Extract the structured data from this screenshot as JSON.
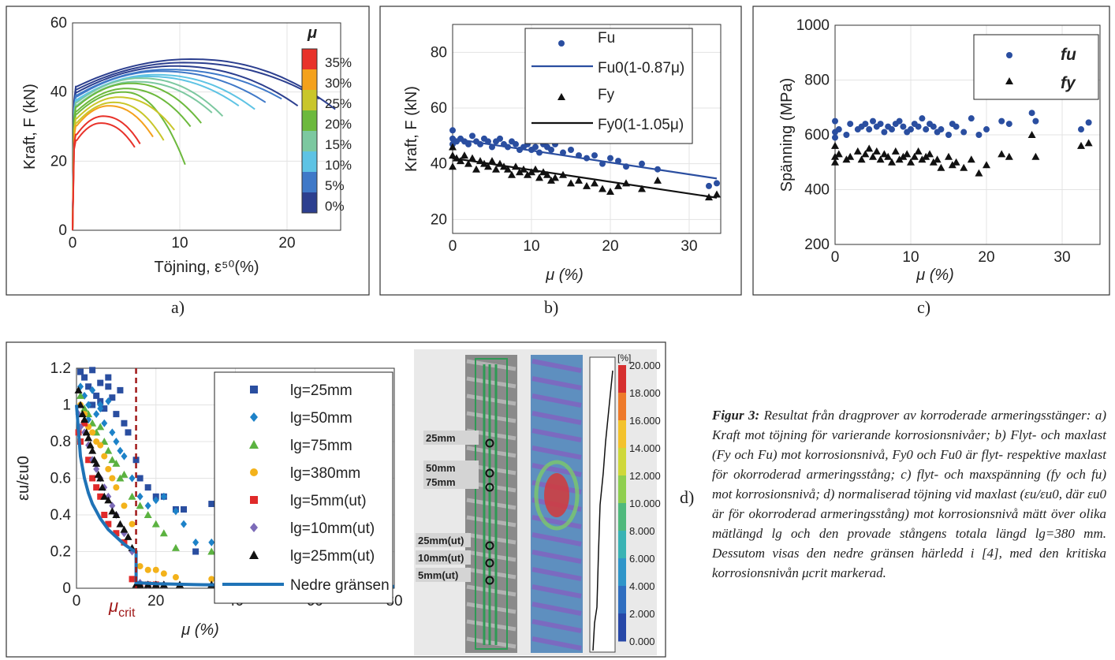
{
  "panel_labels": {
    "a": "a)",
    "b": "b)",
    "c": "c)",
    "d": "d)"
  },
  "caption": {
    "lead": "Figur 3:",
    "text": "Resultat från dragprover av korroderade armeringsstänger: a) Kraft mot töjning för varierande korrosionsnivåer; b) Flyt- och maxlast (Fy och Fu) mot korrosionsnivå, Fy0 och Fu0 är flyt- respektive maxlast för okorroderad armeringsstång; c) flyt- och maxspänning (fy och fu) mot korrosionsnivå; d) normaliserad töjning vid maxlast (εu/εu0, där εu0 är för okorroderad armeringsstång) mot korrosionsnivå mätt över olika mätlängd lg och den provade stångens totala längd lg=380 mm. Dessutom visas den nedre gränsen härledd i [4], med den kritiska korrosionsnivån μcrit markerad."
  },
  "colors": {
    "blue": "#2a4ea0",
    "black": "#111111",
    "crit": "#a01818",
    "lower": "#1f73b7"
  },
  "chart_data": [
    {
      "id": "a",
      "type": "line",
      "xlabel": "Töjning, ε⁵⁰(%)",
      "ylabel": "Kraft, F (kN)",
      "xlim": [
        0,
        25
      ],
      "ylim": [
        0,
        60
      ],
      "xticks": [
        "0",
        "10",
        "20"
      ],
      "xtick_values": [
        0,
        10,
        20
      ],
      "yticks": [
        "0",
        "20",
        "40",
        "60"
      ],
      "ytick_values": [
        0,
        20,
        40,
        60
      ],
      "colorbar": {
        "title": "μ",
        "labels": [
          "35%",
          "30%",
          "25%",
          "20%",
          "15%",
          "10%",
          "5%",
          "0%"
        ],
        "colors": [
          "#e8322a",
          "#f4a11c",
          "#c9c62a",
          "#6cb93d",
          "#7cc8a0",
          "#5ec3e4",
          "#3f79c8",
          "#2c3f8f"
        ]
      },
      "series": [
        {
          "color": "#2c3f8f",
          "peak": 49.5,
          "end_x": 24.5,
          "end_y": 35
        },
        {
          "color": "#2c3f8f",
          "peak": 48.5,
          "end_x": 23.0,
          "end_y": 38
        },
        {
          "color": "#2c3f8f",
          "peak": 47.5,
          "end_x": 21.0,
          "end_y": 36
        },
        {
          "color": "#3f79c8",
          "peak": 46.5,
          "end_x": 19.5,
          "end_y": 38
        },
        {
          "color": "#3f79c8",
          "peak": 46.0,
          "end_x": 18.0,
          "end_y": 37
        },
        {
          "color": "#5ec3e4",
          "peak": 45.0,
          "end_x": 17.0,
          "end_y": 35
        },
        {
          "color": "#5ec3e4",
          "peak": 44.5,
          "end_x": 15.5,
          "end_y": 36
        },
        {
          "color": "#7cc8a0",
          "peak": 44.0,
          "end_x": 14.0,
          "end_y": 33
        },
        {
          "color": "#7cc8a0",
          "peak": 43.0,
          "end_x": 13.0,
          "end_y": 34
        },
        {
          "color": "#6cb93d",
          "peak": 42.5,
          "end_x": 12.0,
          "end_y": 31
        },
        {
          "color": "#6cb93d",
          "peak": 41.0,
          "end_x": 11.0,
          "end_y": 30
        },
        {
          "color": "#6cb93d",
          "peak": 40.0,
          "end_x": 10.5,
          "end_y": 19
        },
        {
          "color": "#c9c62a",
          "peak": 38.5,
          "end_x": 9.5,
          "end_y": 29
        },
        {
          "color": "#c9c62a",
          "peak": 37.0,
          "end_x": 8.5,
          "end_y": 26
        },
        {
          "color": "#f4a11c",
          "peak": 36.0,
          "end_x": 7.5,
          "end_y": 27
        },
        {
          "color": "#e8322a",
          "peak": 33.0,
          "end_x": 6.3,
          "end_y": 25
        },
        {
          "color": "#e8322a",
          "peak": 31.0,
          "end_x": 5.8,
          "end_y": 24
        }
      ]
    },
    {
      "id": "b",
      "type": "scatter",
      "xlabel": "μ (%)",
      "ylabel": "Kraft, F (kN)",
      "xlim": [
        0,
        34
      ],
      "ylim": [
        15,
        90
      ],
      "xticks": [
        "0",
        "10",
        "20",
        "30"
      ],
      "xtick_values": [
        0,
        10,
        20,
        30
      ],
      "yticks": [
        "20",
        "40",
        "60",
        "80"
      ],
      "ytick_values": [
        20,
        40,
        60,
        80
      ],
      "legend": [
        "Fu",
        "Fu0(1-0.87μ)",
        "Fy",
        "Fy0(1-1.05μ)"
      ],
      "series": [
        {
          "name": "Fu",
          "marker": "circle",
          "color": "#2a4ea0",
          "x": [
            0,
            0,
            0,
            0.5,
            1,
            1.5,
            2,
            2.5,
            3,
            3.5,
            4,
            4.5,
            5,
            5.5,
            6,
            6.5,
            7,
            7.5,
            8,
            8.5,
            9,
            9.5,
            10,
            10.5,
            11,
            11.5,
            12,
            12.5,
            13,
            14,
            15,
            16,
            17,
            18,
            19,
            20,
            21,
            22,
            24,
            26,
            32.5,
            33.5
          ],
          "y": [
            52,
            49,
            47,
            48,
            49,
            48,
            47,
            50,
            48,
            47,
            49,
            48,
            46,
            48,
            49,
            47,
            46,
            48,
            47,
            45,
            46,
            47,
            45,
            46,
            44,
            47,
            46,
            45,
            47,
            44,
            45,
            43,
            42,
            43,
            40,
            42,
            41,
            39,
            40,
            38,
            32,
            33
          ]
        },
        {
          "name": "Fu0(1-0.87μ)",
          "type": "line",
          "color": "#2a4ea0",
          "x": [
            0,
            33.5
          ],
          "y": [
            49,
            34.7
          ]
        },
        {
          "name": "Fy",
          "marker": "triangle",
          "color": "#111111",
          "x": [
            0,
            0,
            0,
            0.5,
            1,
            1.5,
            2,
            2.5,
            3,
            3.5,
            4,
            4.5,
            5,
            5.5,
            6,
            6.5,
            7,
            7.5,
            8,
            8.5,
            9,
            9.5,
            10,
            10.5,
            11,
            11.5,
            12,
            12.5,
            13,
            14,
            15,
            16,
            17,
            18,
            19,
            20,
            21,
            22,
            24,
            26,
            32.5,
            33.5
          ],
          "y": [
            46,
            43,
            39,
            42,
            41,
            43,
            40,
            42,
            38,
            41,
            40,
            39,
            41,
            38,
            40,
            39,
            38,
            36,
            39,
            37,
            38,
            36,
            37,
            38,
            35,
            37,
            36,
            34,
            35,
            36,
            33,
            34,
            32,
            33,
            31,
            30,
            32,
            33,
            31,
            34,
            28,
            29
          ]
        },
        {
          "name": "Fy0(1-1.05μ)",
          "type": "line",
          "color": "#111111",
          "x": [
            0,
            33.5
          ],
          "y": [
            42,
            27.8
          ]
        }
      ]
    },
    {
      "id": "c",
      "type": "scatter",
      "xlabel": "μ (%)",
      "ylabel": "Spänning (MPa)",
      "xlim": [
        0,
        35
      ],
      "ylim": [
        200,
        1000
      ],
      "xticks": [
        "0",
        "10",
        "20",
        "30"
      ],
      "xtick_values": [
        0,
        10,
        20,
        30
      ],
      "yticks": [
        "200",
        "400",
        "600",
        "800",
        "1000"
      ],
      "ytick_values": [
        200,
        400,
        600,
        800,
        1000
      ],
      "legend": [
        "fu",
        "fy"
      ],
      "series": [
        {
          "name": "fu",
          "marker": "circle",
          "color": "#2a4ea0",
          "x": [
            0,
            0,
            0,
            0.5,
            1.5,
            2,
            3,
            3.5,
            4,
            4.5,
            5,
            5.5,
            6,
            6.5,
            7,
            7.5,
            8,
            8.5,
            9,
            9.5,
            10,
            10.5,
            11,
            11.5,
            12,
            12.5,
            13,
            13.5,
            14,
            15,
            15.5,
            16,
            17,
            18,
            19,
            20,
            22,
            23,
            26,
            26.5,
            32.5,
            33.5
          ],
          "y": [
            650,
            610,
            590,
            620,
            600,
            640,
            620,
            630,
            640,
            620,
            650,
            630,
            640,
            610,
            630,
            620,
            640,
            650,
            630,
            610,
            620,
            640,
            630,
            660,
            620,
            640,
            630,
            610,
            620,
            600,
            640,
            630,
            610,
            660,
            600,
            620,
            650,
            640,
            680,
            650,
            620,
            645
          ]
        },
        {
          "name": "fy",
          "marker": "triangle",
          "color": "#111111",
          "x": [
            0,
            0,
            0,
            0.5,
            1.5,
            2,
            3,
            3.5,
            4,
            4.5,
            5,
            5.5,
            6,
            6.5,
            7,
            7.5,
            8,
            8.5,
            9,
            9.5,
            10,
            10.5,
            11,
            11.5,
            12,
            12.5,
            13,
            13.5,
            14,
            15,
            15.5,
            16,
            17,
            18,
            19,
            20,
            22,
            23,
            26,
            26.5,
            32.5,
            33.5
          ],
          "y": [
            560,
            520,
            500,
            530,
            510,
            520,
            540,
            510,
            530,
            550,
            520,
            540,
            510,
            530,
            520,
            500,
            540,
            510,
            520,
            530,
            500,
            520,
            540,
            510,
            520,
            530,
            500,
            510,
            480,
            520,
            490,
            500,
            480,
            510,
            460,
            490,
            530,
            520,
            600,
            520,
            560,
            570
          ]
        }
      ]
    },
    {
      "id": "d",
      "type": "scatter",
      "xlabel": "μ (%)",
      "ylabel": "εu/εu0",
      "xlim": [
        0,
        80
      ],
      "ylim": [
        0,
        1.2
      ],
      "xticks": [
        "0",
        "20",
        "40",
        "60",
        "80"
      ],
      "xtick_values": [
        0,
        20,
        40,
        60,
        80
      ],
      "yticks": [
        "0",
        "0.2",
        "0.4",
        "0.6",
        "0.8",
        "1",
        "1.2"
      ],
      "ytick_values": [
        0,
        0.2,
        0.4,
        0.6,
        0.8,
        1,
        1.2
      ],
      "crit_label": "crit",
      "crit_x": 15,
      "legend": [
        "lg=25mm",
        "lg=50mm",
        "lg=75mm",
        "lg=380mm",
        "lg=5mm(ut)",
        "lg=10mm(ut)",
        "lg=25mm(ut)",
        "Nedre gränsen"
      ],
      "series": [
        {
          "name": "lg=25mm",
          "marker": "square",
          "color": "#2a4ea0",
          "x": [
            1,
            2,
            3,
            4,
            5,
            6,
            7,
            8,
            9,
            10,
            11,
            12,
            13,
            15,
            16,
            18,
            20,
            22,
            25,
            27,
            30,
            34,
            8,
            6,
            4
          ],
          "y": [
            1.18,
            1.15,
            1.1,
            1.19,
            1.05,
            1.12,
            0.98,
            1.1,
            1.04,
            0.95,
            1.08,
            0.9,
            0.85,
            0.7,
            0.6,
            0.55,
            0.5,
            0.5,
            0.43,
            0.43,
            0.2,
            0.46,
            1.15,
            1.02,
            1.0
          ]
        },
        {
          "name": "lg=50mm",
          "marker": "diamond",
          "color": "#1d82c8",
          "x": [
            1,
            2,
            3,
            4,
            5,
            6,
            7,
            8,
            9,
            10,
            11,
            12,
            14,
            16,
            18,
            20,
            22,
            25,
            27,
            30,
            34,
            6,
            3
          ],
          "y": [
            1.1,
            1.05,
            1.0,
            1.08,
            0.95,
            0.98,
            0.9,
            1.02,
            0.85,
            0.8,
            0.75,
            0.72,
            0.6,
            0.5,
            0.45,
            0.48,
            0.5,
            0.42,
            0.35,
            0.25,
            0.25,
            1.0,
            0.92
          ]
        },
        {
          "name": "lg=75mm",
          "marker": "triangle",
          "color": "#5bb240",
          "x": [
            1,
            2,
            3,
            4,
            5,
            6,
            7,
            8,
            9,
            10,
            11,
            12,
            14,
            16,
            18,
            20,
            22,
            25,
            34
          ],
          "y": [
            1.05,
            0.98,
            0.95,
            0.9,
            0.85,
            0.88,
            0.8,
            0.75,
            0.7,
            0.68,
            0.6,
            0.62,
            0.5,
            0.45,
            0.4,
            0.35,
            0.3,
            0.22,
            0.2
          ]
        },
        {
          "name": "lg=380mm",
          "marker": "circle",
          "color": "#f3b21b",
          "x": [
            1,
            2,
            3,
            4,
            5,
            6,
            7,
            8,
            9,
            10,
            12,
            14,
            16,
            18,
            20,
            22,
            25,
            34
          ],
          "y": [
            1.0,
            0.95,
            0.88,
            0.85,
            0.8,
            0.78,
            0.72,
            0.65,
            0.6,
            0.55,
            0.45,
            0.35,
            0.12,
            0.1,
            0.1,
            0.08,
            0.06,
            0.05
          ]
        },
        {
          "name": "lg=5mm(ut)",
          "marker": "square",
          "color": "#e02a2a",
          "x": [
            0.5,
            1,
            2,
            3,
            4,
            5,
            6,
            7,
            8,
            10,
            12,
            14,
            16,
            18,
            20
          ],
          "y": [
            0.85,
            0.8,
            0.9,
            0.7,
            0.6,
            0.55,
            0.5,
            0.4,
            0.35,
            0.3,
            0.25,
            0.05,
            0.02,
            0.02,
            0.02
          ]
        },
        {
          "name": "lg=10mm(ut)",
          "marker": "diamond",
          "color": "#7c6bb8",
          "x": [
            0.5,
            1,
            2,
            3,
            4,
            5,
            6,
            7,
            8,
            9,
            10,
            12,
            14,
            16,
            18,
            22
          ],
          "y": [
            0.95,
            0.88,
            0.85,
            0.78,
            0.7,
            0.65,
            0.6,
            0.55,
            0.5,
            0.45,
            0.4,
            0.3,
            0.2,
            0.03,
            0.02,
            0.02
          ]
        },
        {
          "name": "lg=25mm(ut)",
          "marker": "triangle",
          "color": "#111111",
          "x": [
            0.5,
            1,
            1.5,
            2,
            2.5,
            3,
            3.5,
            4,
            4.5,
            5,
            5.5,
            6,
            6.5,
            7,
            8,
            9,
            10,
            11,
            12,
            13,
            14,
            15,
            16,
            18,
            20,
            22,
            26,
            34
          ],
          "y": [
            1.08,
            1.0,
            0.95,
            0.92,
            0.85,
            0.82,
            0.78,
            0.75,
            0.7,
            0.68,
            0.62,
            0.6,
            0.55,
            0.5,
            0.48,
            0.42,
            0.4,
            0.35,
            0.32,
            0.28,
            0.22,
            0.02,
            0.02,
            0.02,
            0.02,
            0.02,
            0.02,
            0.02
          ]
        },
        {
          "name": "Nedre gränsen",
          "type": "line",
          "color": "#1f73b7",
          "x": [
            0,
            1,
            2,
            3,
            4,
            6,
            8,
            10,
            12,
            14,
            15,
            15,
            20,
            30,
            40,
            60,
            80
          ],
          "y": [
            1.0,
            0.72,
            0.6,
            0.52,
            0.46,
            0.38,
            0.32,
            0.28,
            0.24,
            0.21,
            0.2,
            0.03,
            0.025,
            0.02,
            0.017,
            0.013,
            0.01
          ]
        }
      ]
    }
  ],
  "image": {
    "colorbar_title": "[%]",
    "colorbar_labels": [
      "20.000",
      "18.000",
      "16.000",
      "14.000",
      "12.000",
      "10.000",
      "8.000",
      "6.000",
      "4.000",
      "2.000",
      "0.000"
    ],
    "gauge_labels": [
      "25mm",
      "50mm",
      "75mm",
      "25mm(ut)",
      "10mm(ut)",
      "5mm(ut)"
    ]
  }
}
